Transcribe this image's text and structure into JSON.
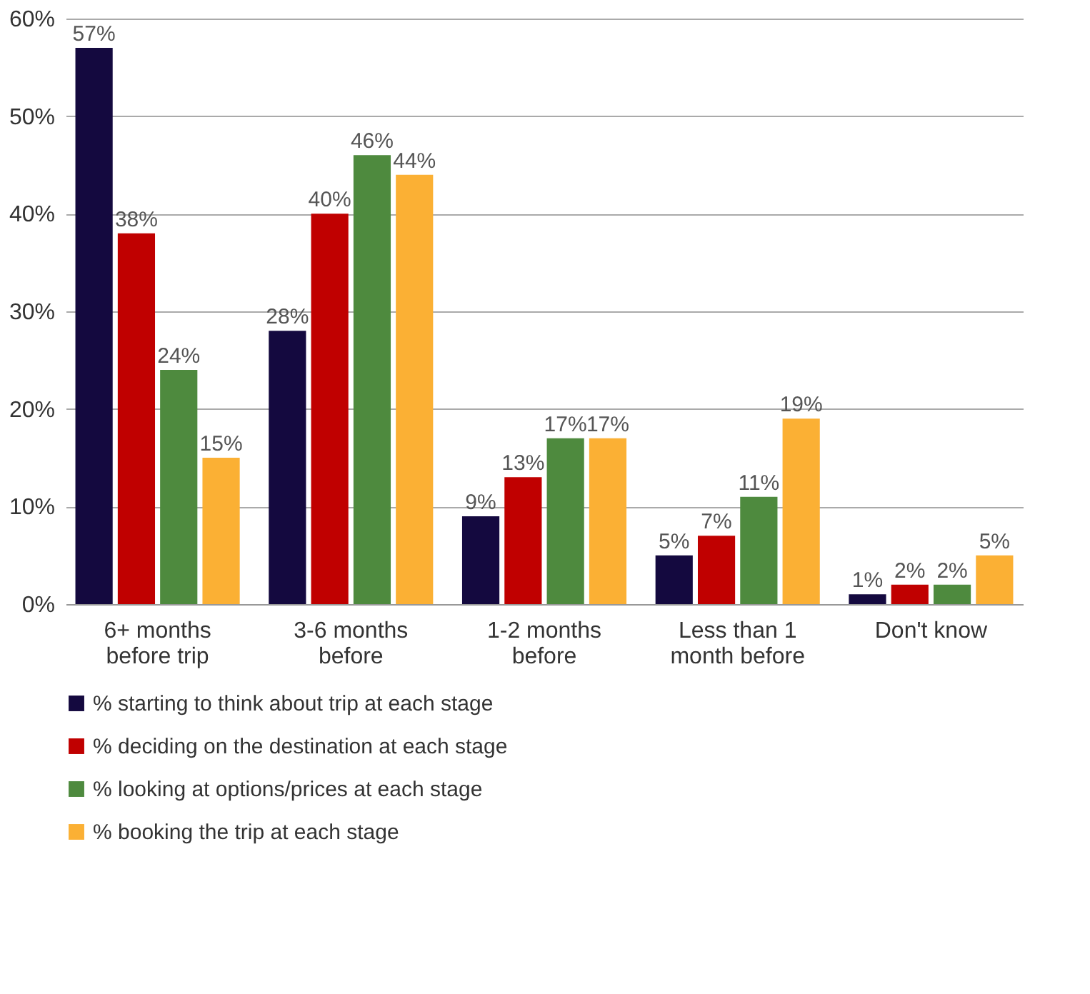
{
  "chart_data": {
    "type": "bar",
    "categories": [
      "6+ months\nbefore trip",
      "3-6 months\nbefore",
      "1-2 months\nbefore",
      "Less than 1\nmonth before",
      "Don't know"
    ],
    "series": [
      {
        "name": "% starting to think about trip at each stage",
        "color": "#14093f",
        "values": [
          57,
          28,
          9,
          5,
          1
        ],
        "value_labels": [
          "57%",
          "28%",
          "9%",
          "5%",
          "1%"
        ]
      },
      {
        "name": "% deciding on the destination at each stage",
        "color": "#c00000",
        "values": [
          38,
          40,
          13,
          7,
          2
        ],
        "value_labels": [
          "38%",
          "40%",
          "13%",
          "7%",
          "2%"
        ]
      },
      {
        "name": "% looking at options/prices at each stage",
        "color": "#4e8a3e",
        "values": [
          24,
          46,
          17,
          11,
          2
        ],
        "value_labels": [
          "24%",
          "46%",
          "17%",
          "11%",
          "2%"
        ]
      },
      {
        "name": "% booking the trip at each stage",
        "color": "#fbb034",
        "values": [
          15,
          44,
          17,
          19,
          5
        ],
        "value_labels": [
          "15%",
          "44%",
          "17%",
          "19%",
          "5%"
        ]
      }
    ],
    "ylim": [
      0,
      60
    ],
    "yticks": [
      {
        "value": 0,
        "label": "0%"
      },
      {
        "value": 10,
        "label": "10%"
      },
      {
        "value": 20,
        "label": "20%"
      },
      {
        "value": 30,
        "label": "30%"
      },
      {
        "value": 40,
        "label": "40%"
      },
      {
        "value": 50,
        "label": "50%"
      },
      {
        "value": 60,
        "label": "60%"
      }
    ],
    "grid": "y",
    "legend": "bottom"
  }
}
